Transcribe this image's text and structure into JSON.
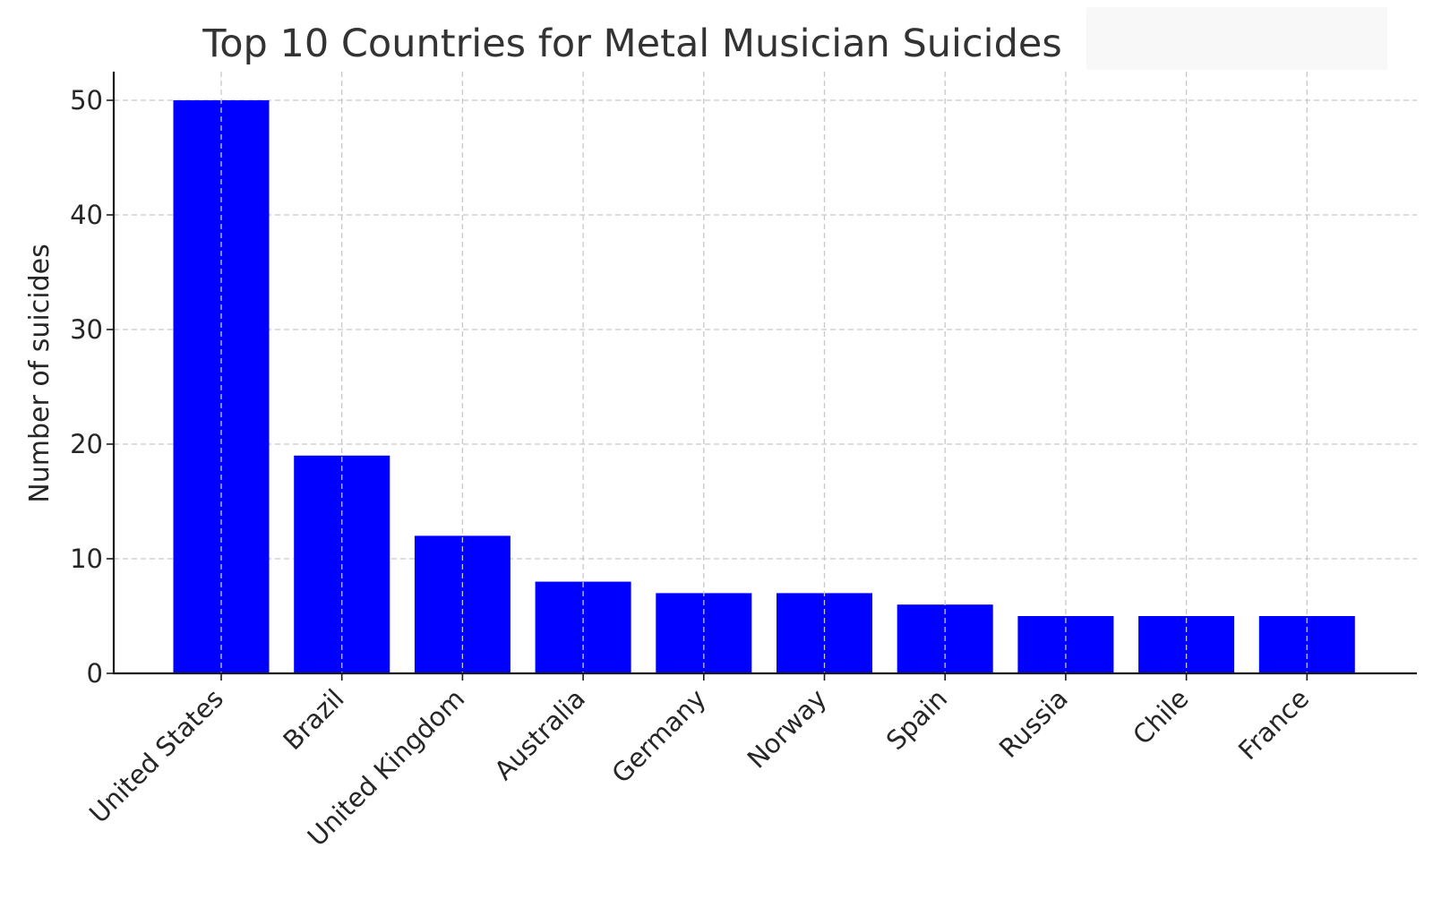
{
  "chart_data": {
    "type": "bar",
    "title": "Top 10 Countries for Metal Musician Suicides",
    "xlabel": "",
    "ylabel": "Number of suicides",
    "categories": [
      "United States",
      "Brazil",
      "United Kingdom",
      "Australia",
      "Germany",
      "Norway",
      "Spain",
      "Russia",
      "Chile",
      "France"
    ],
    "values": [
      50,
      19,
      12,
      8,
      7,
      7,
      6,
      5,
      5,
      5
    ],
    "ylim": [
      0,
      52.5
    ],
    "yticks": [
      0,
      10,
      20,
      30,
      40,
      50
    ],
    "grid": true,
    "legend": "none",
    "colors": {
      "bar": "#0000ff",
      "grid": "#c8c8c8",
      "axis": "#1a1a1a",
      "text": "#262626",
      "title_box": "#f8f8f8"
    }
  }
}
